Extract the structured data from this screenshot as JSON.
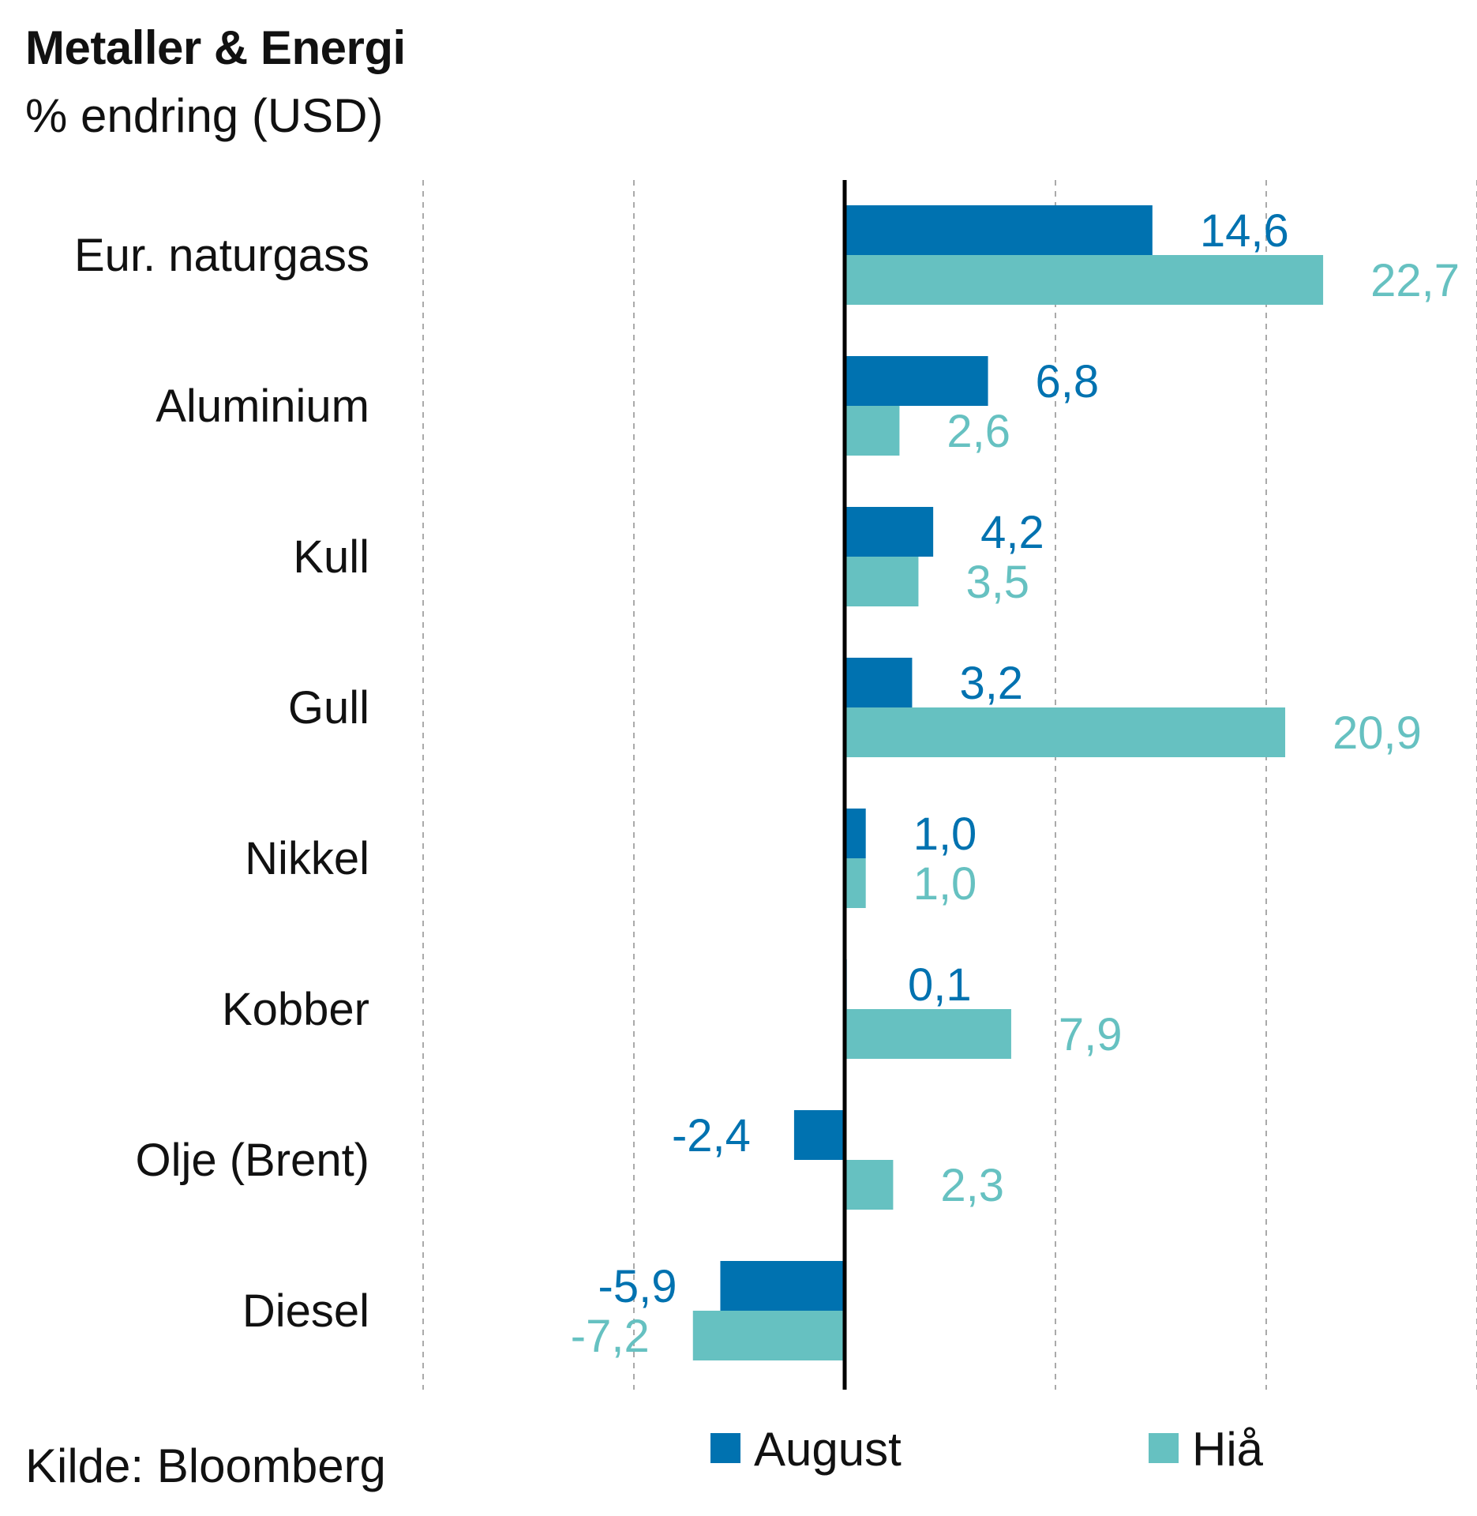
{
  "title": "Metaller & Energi",
  "subtitle": "% endring (USD)",
  "source": "Kilde: Bloomberg",
  "colors": {
    "august": "#0072b0",
    "hia": "#66c1c1",
    "zero_axis": "#000000",
    "grid": "#aaaaaa"
  },
  "chart_data": {
    "type": "bar",
    "orientation": "horizontal",
    "categories": [
      "Eur. naturgass",
      "Aluminium",
      "Kull",
      "Gull",
      "Nikkel",
      "Kobber",
      "Olje (Brent)",
      "Diesel"
    ],
    "series": [
      {
        "name": "August",
        "values": [
          14.6,
          6.8,
          4.2,
          3.2,
          1.0,
          0.1,
          -2.4,
          -5.9
        ],
        "labels": [
          "14,6",
          "6,8",
          "4,2",
          "3,2",
          "1,0",
          "0,1",
          "-2,4",
          "-5,9"
        ]
      },
      {
        "name": "Hiå",
        "values": [
          22.7,
          2.6,
          3.5,
          20.9,
          1.0,
          7.9,
          2.3,
          -7.2
        ],
        "labels": [
          "22,7",
          "2,6",
          "3,5",
          "20,9",
          "1,0",
          "7,9",
          "2,3",
          "-7,2"
        ]
      }
    ],
    "xlim": [
      -20,
      30
    ],
    "grid": true,
    "legend_position": "bottom"
  }
}
